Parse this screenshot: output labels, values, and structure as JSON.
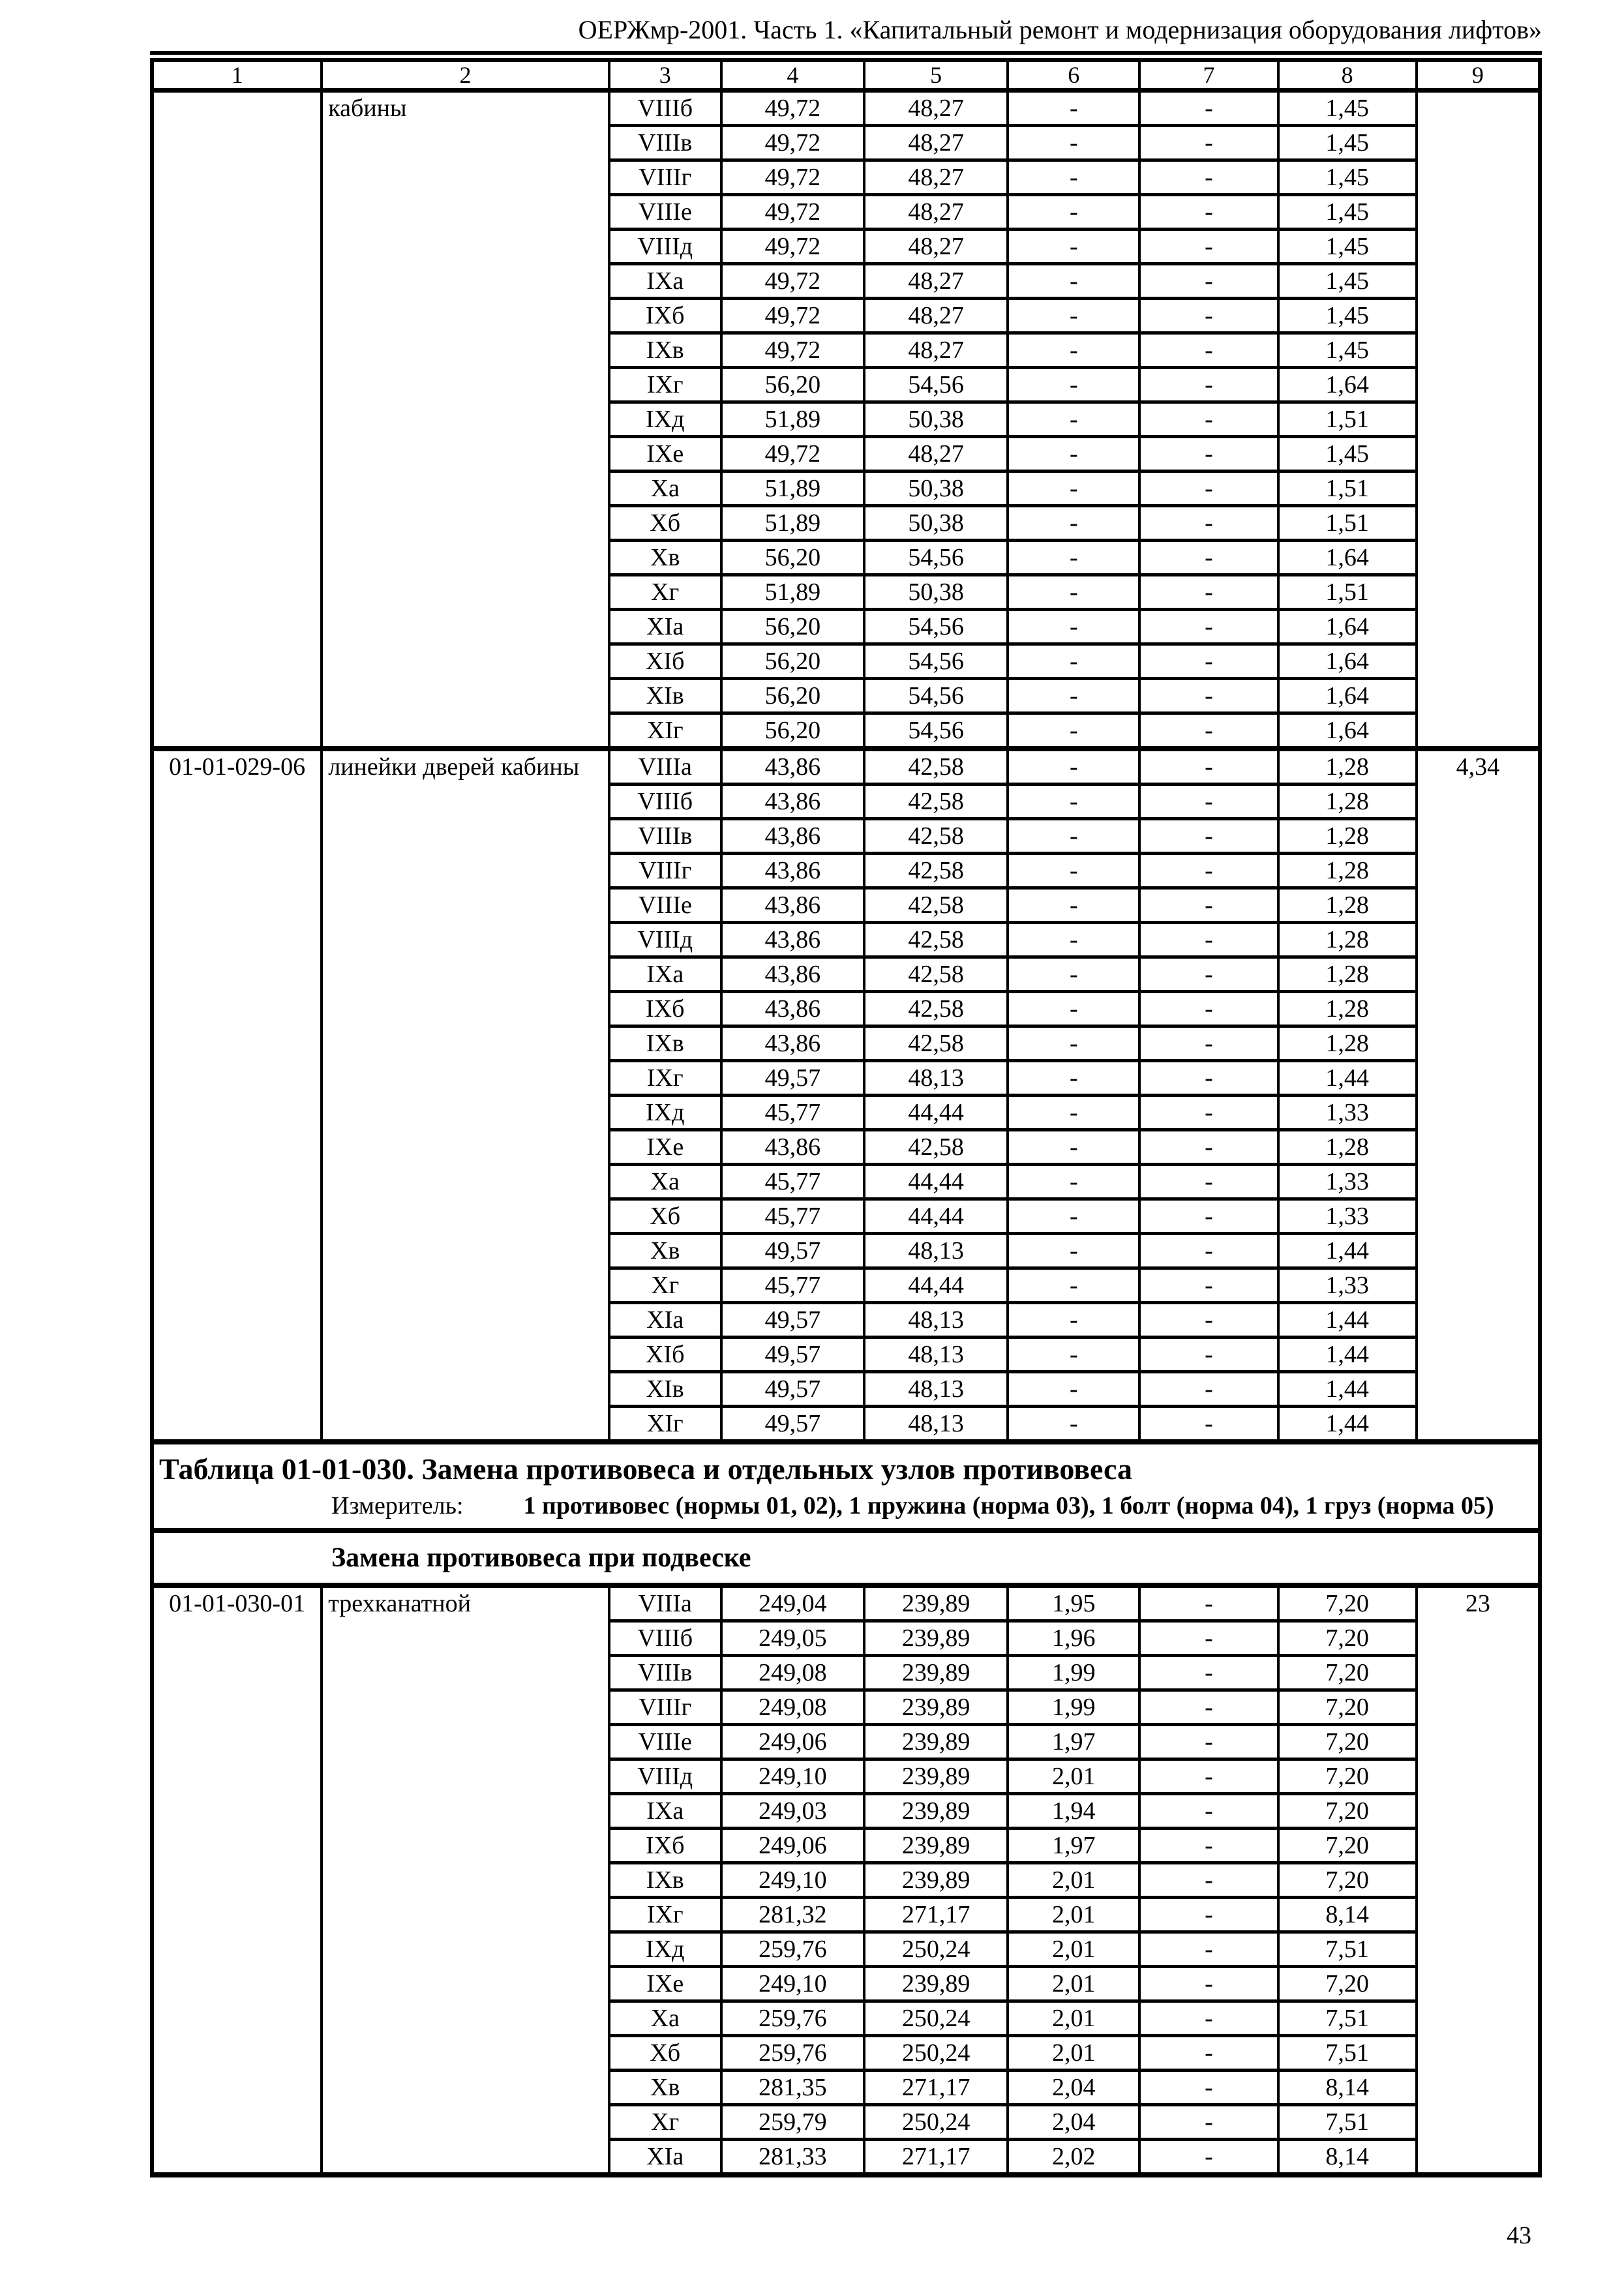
{
  "page": {
    "header_title": "ОЕРЖмр-2001. Часть 1. «Капитальный ремонт и модернизация оборудования лифтов»",
    "page_number": "43"
  },
  "table": {
    "column_headers": [
      "1",
      "2",
      "3",
      "4",
      "5",
      "6",
      "7",
      "8",
      "9"
    ],
    "blocks": [
      {
        "type": "section",
        "code": "",
        "description": "кабины",
        "col9": "",
        "rows": [
          [
            "VIIIб",
            "49,72",
            "48,27",
            "-",
            "-",
            "1,45"
          ],
          [
            "VIIIв",
            "49,72",
            "48,27",
            "-",
            "-",
            "1,45"
          ],
          [
            "VIIIг",
            "49,72",
            "48,27",
            "-",
            "-",
            "1,45"
          ],
          [
            "VIIIе",
            "49,72",
            "48,27",
            "-",
            "-",
            "1,45"
          ],
          [
            "VIIIд",
            "49,72",
            "48,27",
            "-",
            "-",
            "1,45"
          ],
          [
            "IXа",
            "49,72",
            "48,27",
            "-",
            "-",
            "1,45"
          ],
          [
            "IXб",
            "49,72",
            "48,27",
            "-",
            "-",
            "1,45"
          ],
          [
            "IXв",
            "49,72",
            "48,27",
            "-",
            "-",
            "1,45"
          ],
          [
            "IXг",
            "56,20",
            "54,56",
            "-",
            "-",
            "1,64"
          ],
          [
            "IXд",
            "51,89",
            "50,38",
            "-",
            "-",
            "1,51"
          ],
          [
            "IXе",
            "49,72",
            "48,27",
            "-",
            "-",
            "1,45"
          ],
          [
            "Xа",
            "51,89",
            "50,38",
            "-",
            "-",
            "1,51"
          ],
          [
            "Xб",
            "51,89",
            "50,38",
            "-",
            "-",
            "1,51"
          ],
          [
            "Xв",
            "56,20",
            "54,56",
            "-",
            "-",
            "1,64"
          ],
          [
            "Xг",
            "51,89",
            "50,38",
            "-",
            "-",
            "1,51"
          ],
          [
            "XIа",
            "56,20",
            "54,56",
            "-",
            "-",
            "1,64"
          ],
          [
            "XIб",
            "56,20",
            "54,56",
            "-",
            "-",
            "1,64"
          ],
          [
            "XIв",
            "56,20",
            "54,56",
            "-",
            "-",
            "1,64"
          ],
          [
            "XIг",
            "56,20",
            "54,56",
            "-",
            "-",
            "1,64"
          ]
        ]
      },
      {
        "type": "section",
        "code": "01-01-029-06",
        "description": "линейки дверей кабины",
        "col9": "4,34",
        "rows": [
          [
            "VIIIа",
            "43,86",
            "42,58",
            "-",
            "-",
            "1,28"
          ],
          [
            "VIIIб",
            "43,86",
            "42,58",
            "-",
            "-",
            "1,28"
          ],
          [
            "VIIIв",
            "43,86",
            "42,58",
            "-",
            "-",
            "1,28"
          ],
          [
            "VIIIг",
            "43,86",
            "42,58",
            "-",
            "-",
            "1,28"
          ],
          [
            "VIIIе",
            "43,86",
            "42,58",
            "-",
            "-",
            "1,28"
          ],
          [
            "VIIIд",
            "43,86",
            "42,58",
            "-",
            "-",
            "1,28"
          ],
          [
            "IXа",
            "43,86",
            "42,58",
            "-",
            "-",
            "1,28"
          ],
          [
            "IXб",
            "43,86",
            "42,58",
            "-",
            "-",
            "1,28"
          ],
          [
            "IXв",
            "43,86",
            "42,58",
            "-",
            "-",
            "1,28"
          ],
          [
            "IXг",
            "49,57",
            "48,13",
            "-",
            "-",
            "1,44"
          ],
          [
            "IXд",
            "45,77",
            "44,44",
            "-",
            "-",
            "1,33"
          ],
          [
            "IXе",
            "43,86",
            "42,58",
            "-",
            "-",
            "1,28"
          ],
          [
            "Xа",
            "45,77",
            "44,44",
            "-",
            "-",
            "1,33"
          ],
          [
            "Xб",
            "45,77",
            "44,44",
            "-",
            "-",
            "1,33"
          ],
          [
            "Xв",
            "49,57",
            "48,13",
            "-",
            "-",
            "1,44"
          ],
          [
            "Xг",
            "45,77",
            "44,44",
            "-",
            "-",
            "1,33"
          ],
          [
            "XIа",
            "49,57",
            "48,13",
            "-",
            "-",
            "1,44"
          ],
          [
            "XIб",
            "49,57",
            "48,13",
            "-",
            "-",
            "1,44"
          ],
          [
            "XIв",
            "49,57",
            "48,13",
            "-",
            "-",
            "1,44"
          ],
          [
            "XIг",
            "49,57",
            "48,13",
            "-",
            "-",
            "1,44"
          ]
        ]
      },
      {
        "type": "subtable-header",
        "title": "Таблица 01-01-030. Замена противовеса и отдельных узлов противовеса",
        "measurer_label": "Измеритель:",
        "measurer_text": "1 противовес (нормы 01, 02), 1 пружина (норма 03), 1 болт (норма 04), 1 груз (норма 05)",
        "group_label": "Замена противовеса при подвеске"
      },
      {
        "type": "section",
        "code": "01-01-030-01",
        "description": "трехканатной",
        "col9": "23",
        "rows": [
          [
            "VIIIа",
            "249,04",
            "239,89",
            "1,95",
            "-",
            "7,20"
          ],
          [
            "VIIIб",
            "249,05",
            "239,89",
            "1,96",
            "-",
            "7,20"
          ],
          [
            "VIIIв",
            "249,08",
            "239,89",
            "1,99",
            "-",
            "7,20"
          ],
          [
            "VIIIг",
            "249,08",
            "239,89",
            "1,99",
            "-",
            "7,20"
          ],
          [
            "VIIIе",
            "249,06",
            "239,89",
            "1,97",
            "-",
            "7,20"
          ],
          [
            "VIIIд",
            "249,10",
            "239,89",
            "2,01",
            "-",
            "7,20"
          ],
          [
            "IXа",
            "249,03",
            "239,89",
            "1,94",
            "-",
            "7,20"
          ],
          [
            "IXб",
            "249,06",
            "239,89",
            "1,97",
            "-",
            "7,20"
          ],
          [
            "IXв",
            "249,10",
            "239,89",
            "2,01",
            "-",
            "7,20"
          ],
          [
            "IXг",
            "281,32",
            "271,17",
            "2,01",
            "-",
            "8,14"
          ],
          [
            "IXд",
            "259,76",
            "250,24",
            "2,01",
            "-",
            "7,51"
          ],
          [
            "IXе",
            "249,10",
            "239,89",
            "2,01",
            "-",
            "7,20"
          ],
          [
            "Xа",
            "259,76",
            "250,24",
            "2,01",
            "-",
            "7,51"
          ],
          [
            "Xб",
            "259,76",
            "250,24",
            "2,01",
            "-",
            "7,51"
          ],
          [
            "Xв",
            "281,35",
            "271,17",
            "2,04",
            "-",
            "8,14"
          ],
          [
            "Xг",
            "259,79",
            "250,24",
            "2,04",
            "-",
            "7,51"
          ],
          [
            "XIа",
            "281,33",
            "271,17",
            "2,02",
            "-",
            "8,14"
          ]
        ]
      }
    ]
  }
}
